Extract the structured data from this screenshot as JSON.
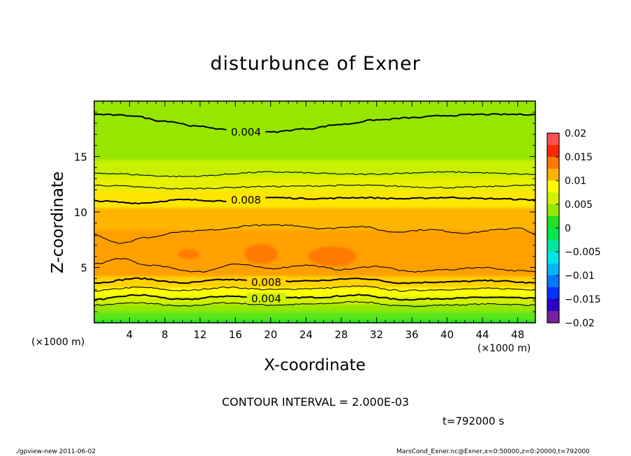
{
  "chart_data": {
    "type": "contour",
    "title": "disturbunce of Exner",
    "xlabel": "X-coordinate",
    "ylabel": "Z-coordinate",
    "x_unit": "(×1000 m)",
    "y_unit": "(×1000 m)",
    "xlim": [
      0,
      50
    ],
    "ylim": [
      0,
      20
    ],
    "x_ticks": [
      4,
      8,
      12,
      16,
      20,
      24,
      28,
      32,
      36,
      40,
      44,
      48
    ],
    "y_ticks": [
      5,
      10,
      15
    ],
    "contour_interval_text": "CONTOUR INTERVAL = 2.000E-03",
    "time_text": "t=792000 s",
    "colorbar": {
      "levels": [
        -0.02,
        -0.0175,
        -0.015,
        -0.0125,
        -0.01,
        -0.0075,
        -0.005,
        -0.0025,
        0,
        0.0025,
        0.005,
        0.0075,
        0.01,
        0.0125,
        0.015,
        0.0175,
        0.02
      ],
      "colors": [
        "#7a1fa2",
        "#2a00c8",
        "#0032ff",
        "#0078ff",
        "#00b4ff",
        "#00e6e6",
        "#00e6a0",
        "#00e650",
        "#23e023",
        "#96e600",
        "#d2f000",
        "#ffff00",
        "#ffb400",
        "#ff7800",
        "#ff2800",
        "#ff5050",
        "#ff9696"
      ],
      "tick_values": [
        -0.02,
        -0.015,
        -0.01,
        -0.005,
        0,
        0.005,
        0.01,
        0.015,
        0.02
      ],
      "tick_labels": [
        "−0.02",
        "−0.015",
        "−0.01",
        "−0.005",
        "0",
        "0.005",
        "0.01",
        "0.015",
        "0.02"
      ]
    },
    "field_bands": [
      {
        "z0": 0.0,
        "z1": 0.4,
        "value": 0.0008,
        "color": "#23e023"
      },
      {
        "z0": 0.4,
        "z1": 1.1,
        "value": 0.0018,
        "color": "#5ae61a"
      },
      {
        "z0": 1.1,
        "z1": 1.8,
        "value": 0.0035,
        "color": "#96e600"
      },
      {
        "z0": 1.8,
        "z1": 2.5,
        "value": 0.0055,
        "color": "#d2f000"
      },
      {
        "z0": 2.5,
        "z1": 3.3,
        "value": 0.0075,
        "color": "#ffff00"
      },
      {
        "z0": 3.3,
        "z1": 4.3,
        "value": 0.0088,
        "color": "#ffd200"
      },
      {
        "z0": 4.3,
        "z1": 8.5,
        "value": 0.0102,
        "color": "#ffa000"
      },
      {
        "z0": 8.5,
        "z1": 10.5,
        "value": 0.0092,
        "color": "#ffb400"
      },
      {
        "z0": 10.5,
        "z1": 12.0,
        "value": 0.0075,
        "color": "#ffe600"
      },
      {
        "z0": 12.0,
        "z1": 13.3,
        "value": 0.0062,
        "color": "#e6f000"
      },
      {
        "z0": 13.3,
        "z1": 14.8,
        "value": 0.0052,
        "color": "#c8f000"
      },
      {
        "z0": 14.8,
        "z1": 20.0,
        "value": 0.0038,
        "color": "#96e600"
      }
    ],
    "maxima": [
      {
        "x": 10.7,
        "z": 6.2,
        "rx": 1.2,
        "rz": 0.45
      },
      {
        "x": 18.9,
        "z": 6.2,
        "rx": 1.9,
        "rz": 0.9
      },
      {
        "x": 27.0,
        "z": 6.0,
        "rx": 2.7,
        "rz": 0.9
      }
    ],
    "contours": [
      {
        "level": 0.002,
        "label": "",
        "points": [
          [
            0,
            1.6
          ],
          [
            5,
            1.8
          ],
          [
            10,
            1.5
          ],
          [
            15,
            1.8
          ],
          [
            20,
            1.6
          ],
          [
            25,
            1.7
          ],
          [
            30,
            1.9
          ],
          [
            35,
            1.5
          ],
          [
            40,
            1.6
          ],
          [
            45,
            1.7
          ],
          [
            50,
            1.6
          ]
        ]
      },
      {
        "level": 0.004,
        "label": "0.004",
        "label_x": 19.5,
        "points": [
          [
            0,
            2.1
          ],
          [
            5,
            2.5
          ],
          [
            10,
            2.1
          ],
          [
            15,
            2.4
          ],
          [
            20,
            2.2
          ],
          [
            25,
            2.3
          ],
          [
            30,
            2.5
          ],
          [
            35,
            2.1
          ],
          [
            40,
            2.2
          ],
          [
            45,
            2.3
          ],
          [
            50,
            2.2
          ]
        ]
      },
      {
        "level": 0.006,
        "label": "",
        "points": [
          [
            0,
            2.9
          ],
          [
            5,
            3.2
          ],
          [
            10,
            2.9
          ],
          [
            15,
            3.2
          ],
          [
            20,
            3.0
          ],
          [
            25,
            3.1
          ],
          [
            30,
            3.3
          ],
          [
            35,
            2.9
          ],
          [
            40,
            3.0
          ],
          [
            45,
            3.1
          ],
          [
            50,
            3.0
          ]
        ]
      },
      {
        "level": 0.008,
        "label": "0.008",
        "label_x": 19.5,
        "points": [
          [
            0,
            3.6
          ],
          [
            5,
            4.0
          ],
          [
            10,
            3.6
          ],
          [
            15,
            3.9
          ],
          [
            20,
            3.7
          ],
          [
            25,
            3.8
          ],
          [
            30,
            4.0
          ],
          [
            35,
            3.6
          ],
          [
            40,
            3.7
          ],
          [
            45,
            3.8
          ],
          [
            50,
            3.6
          ]
        ]
      },
      {
        "level": 0.01,
        "label": "",
        "points": [
          [
            0,
            5.3
          ],
          [
            3,
            5.8
          ],
          [
            6,
            5.2
          ],
          [
            12,
            4.6
          ],
          [
            16,
            5.3
          ],
          [
            20,
            4.9
          ],
          [
            24,
            5.2
          ],
          [
            28,
            4.8
          ],
          [
            32,
            5.1
          ],
          [
            36,
            4.6
          ],
          [
            40,
            4.8
          ],
          [
            44,
            5.0
          ],
          [
            48,
            4.7
          ],
          [
            50,
            4.6
          ]
        ]
      },
      {
        "level": 0.01,
        "label": "",
        "points": [
          [
            0,
            7.9
          ],
          [
            3,
            7.2
          ],
          [
            6,
            7.7
          ],
          [
            10,
            8.2
          ],
          [
            14,
            8.4
          ],
          [
            18,
            8.8
          ],
          [
            22,
            8.8
          ],
          [
            26,
            8.5
          ],
          [
            30,
            8.7
          ],
          [
            34,
            8.2
          ],
          [
            38,
            8.4
          ],
          [
            42,
            8.1
          ],
          [
            46,
            8.4
          ],
          [
            48,
            8.6
          ],
          [
            50,
            8.0
          ]
        ]
      },
      {
        "level": 0.008,
        "label": "0.008",
        "label_x": 17.2,
        "points": [
          [
            0,
            11.0
          ],
          [
            5,
            10.8
          ],
          [
            10,
            11.1
          ],
          [
            15,
            11.0
          ],
          [
            20,
            11.3
          ],
          [
            25,
            11.2
          ],
          [
            30,
            11.3
          ],
          [
            35,
            11.2
          ],
          [
            40,
            11.3
          ],
          [
            45,
            11.2
          ],
          [
            50,
            11.1
          ]
        ]
      },
      {
        "level": 0.006,
        "label": "",
        "points": [
          [
            0,
            12.4
          ],
          [
            10,
            12.1
          ],
          [
            20,
            12.3
          ],
          [
            30,
            12.4
          ],
          [
            40,
            12.2
          ],
          [
            50,
            12.4
          ]
        ]
      },
      {
        "level": 0.005,
        "label": "",
        "points": [
          [
            0,
            13.5
          ],
          [
            10,
            13.2
          ],
          [
            20,
            13.6
          ],
          [
            30,
            13.4
          ],
          [
            40,
            13.6
          ],
          [
            50,
            13.4
          ]
        ]
      },
      {
        "level": 0.004,
        "label": "0.004",
        "label_x": 17.2,
        "points": [
          [
            0,
            18.8
          ],
          [
            4,
            18.7
          ],
          [
            8,
            18.2
          ],
          [
            12,
            17.7
          ],
          [
            16,
            17.3
          ],
          [
            20,
            17.2
          ],
          [
            24,
            17.5
          ],
          [
            28,
            17.9
          ],
          [
            32,
            18.3
          ],
          [
            36,
            18.5
          ],
          [
            40,
            18.7
          ],
          [
            44,
            18.8
          ],
          [
            50,
            18.8
          ]
        ]
      }
    ]
  },
  "footer": {
    "left": "./gpview-new   2011-06-02",
    "right": "MarsCond_Exner.nc@Exner,x=0:50000,z=0:20000,t=792000"
  }
}
